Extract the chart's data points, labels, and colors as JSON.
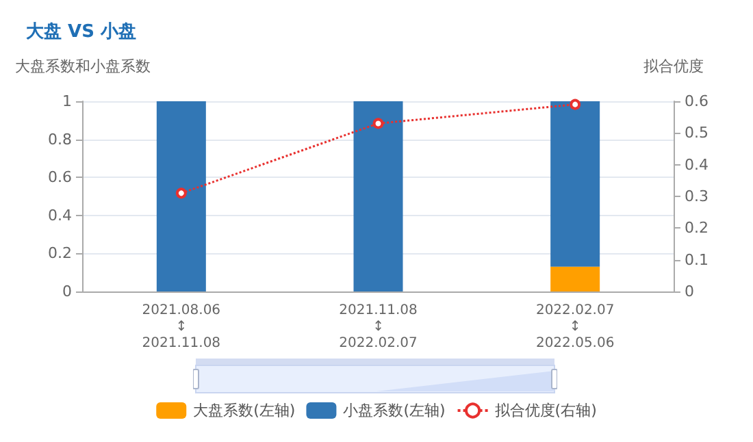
{
  "chart_data": {
    "type": "bar",
    "title": "大盘 VS 小盘",
    "ylabel": "大盘系数和小盘系数",
    "y2label": "拟合优度",
    "categories": [
      "2021.08.06\n↕\n2021.11.08",
      "2021.11.08\n↕\n2022.02.07",
      "2022.02.07\n↕\n2022.05.06"
    ],
    "stacked": true,
    "series": [
      {
        "name": "大盘系数(左轴)",
        "color": "#ff9f00",
        "values": [
          0,
          0,
          0.13
        ]
      },
      {
        "name": "小盘系数(左轴)",
        "color": "#3277b5",
        "values": [
          1,
          1,
          0.87
        ]
      },
      {
        "name": "拟合优度(右轴)",
        "type": "line",
        "axis": "y2",
        "color": "#e8312f",
        "values": [
          0.31,
          0.53,
          0.59
        ],
        "marker": "circle",
        "line_style": "dotted"
      }
    ],
    "ylim": [
      0,
      1
    ],
    "yticks": [
      0,
      0.2,
      0.4,
      0.6,
      0.8,
      1
    ],
    "y2lim": [
      0,
      0.6
    ],
    "y2ticks": [
      0,
      0.1,
      0.2,
      0.3,
      0.4,
      0.5,
      0.6
    ],
    "grid": "y",
    "legend": "bottom"
  }
}
